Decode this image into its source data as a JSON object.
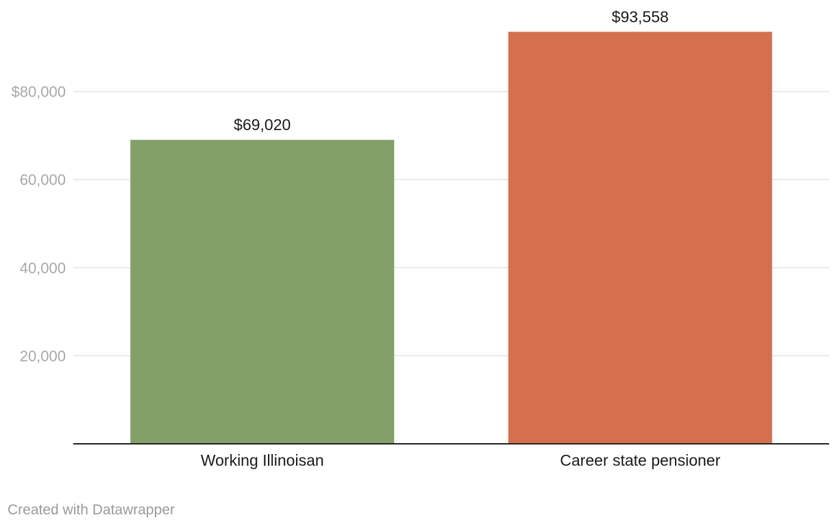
{
  "chart_data": {
    "type": "bar",
    "categories": [
      "Working Illinoisan",
      "Career state pensioner"
    ],
    "values": [
      69020,
      93558
    ],
    "value_labels": [
      "$69,020",
      "$93,558"
    ],
    "colors": [
      "#84a06a",
      "#d4704e"
    ],
    "y_ticks": [
      {
        "value": 20000,
        "label": "20,000"
      },
      {
        "value": 40000,
        "label": "40,000"
      },
      {
        "value": 60000,
        "label": "60,000"
      },
      {
        "value": 80000,
        "label": "$80,000"
      }
    ],
    "ylim": [
      0,
      100000
    ],
    "grid": true,
    "title": "",
    "xlabel": "",
    "ylabel": ""
  },
  "footer": {
    "credit": "Created with Datawrapper"
  }
}
